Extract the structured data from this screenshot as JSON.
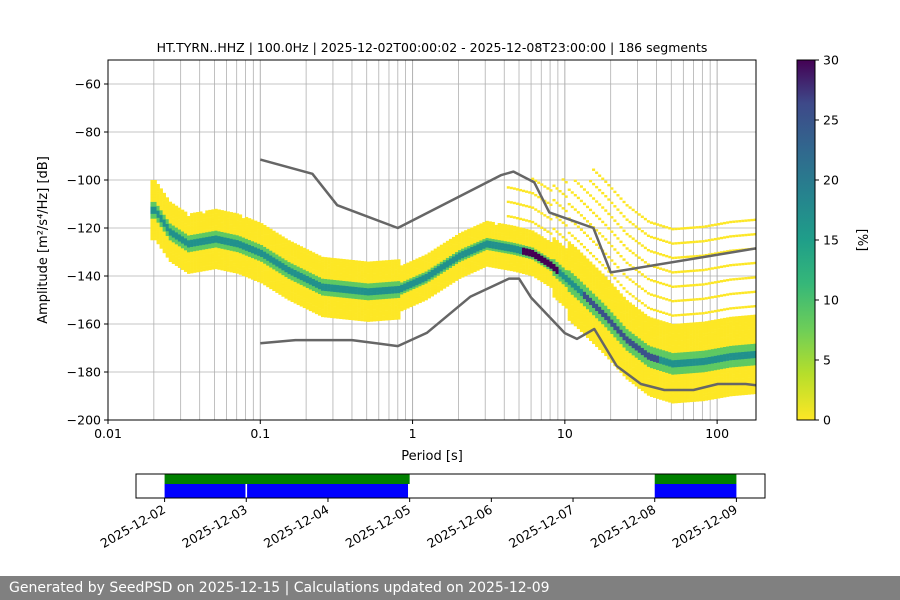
{
  "chart_data": {
    "type": "heatmap",
    "title": "HT.TYRN..HHZ | 100.0Hz | 2025-12-02T00:00:02 - 2025-12-08T23:00:00 | 186 segments",
    "xlabel": "Period [s]",
    "ylabel": "Amplitude [m²/s⁴/Hz] [dB]",
    "xscale": "log",
    "xlim": [
      0.01,
      180
    ],
    "ylim": [
      -200,
      -50
    ],
    "xticks": [
      {
        "value": 0.01,
        "label": "0.01"
      },
      {
        "value": 0.1,
        "label": "0.1"
      },
      {
        "value": 1,
        "label": "1"
      },
      {
        "value": 10,
        "label": "10"
      },
      {
        "value": 100,
        "label": "100"
      }
    ],
    "yticks": [
      {
        "value": -60,
        "label": "−60"
      },
      {
        "value": -80,
        "label": "−80"
      },
      {
        "value": -100,
        "label": "−100"
      },
      {
        "value": -120,
        "label": "−120"
      },
      {
        "value": -140,
        "label": "−140"
      },
      {
        "value": -160,
        "label": "−160"
      },
      {
        "value": -180,
        "label": "−180"
      },
      {
        "value": -200,
        "label": "−200"
      }
    ],
    "colorbar": {
      "label": "[%]",
      "range": [
        0,
        30
      ],
      "ticks": [
        "0",
        "5",
        "10",
        "15",
        "20",
        "25",
        "30"
      ],
      "colormap": [
        "#fde725",
        "#5ec962",
        "#21918c",
        "#3b528b",
        "#440154"
      ]
    },
    "grid_color": "#b0b0b0",
    "curve_color": "#666666",
    "series": [
      {
        "name": "NHNM",
        "x": [
          0.1,
          0.22,
          0.32,
          0.8,
          3.8,
          4.6,
          6.3,
          7.9,
          15.4,
          20,
          180
        ],
        "y": [
          -91.5,
          -97.4,
          -110.5,
          -120,
          -98,
          -96.5,
          -101,
          -113.5,
          -120,
          -138.5,
          -128.5
        ]
      },
      {
        "name": "NLNM",
        "x": [
          0.1,
          0.17,
          0.4,
          0.8,
          1.24,
          2.4,
          4.3,
          5,
          6,
          10,
          12,
          15.6,
          21.9,
          31.6,
          45,
          70,
          101,
          154,
          180
        ],
        "y": [
          -168,
          -166.7,
          -166.7,
          -169.2,
          -163.7,
          -148.6,
          -141.1,
          -141.1,
          -149,
          -163.8,
          -166.2,
          -162.1,
          -177.5,
          -185,
          -187.5,
          -187.5,
          -185,
          -185,
          -185.5
        ]
      },
      {
        "name": "PSD mode",
        "x": [
          0.02,
          0.025,
          0.033,
          0.05,
          0.07,
          0.1,
          0.15,
          0.25,
          0.5,
          0.8,
          1.2,
          2,
          3,
          4.5,
          6,
          8,
          12,
          18,
          25,
          35,
          50,
          80,
          120,
          180
        ],
        "y": [
          -113,
          -122,
          -127,
          -125,
          -127,
          -131,
          -138,
          -145,
          -147,
          -146,
          -141,
          -132,
          -127,
          -129,
          -131,
          -136,
          -146,
          -157,
          -167,
          -174,
          -177,
          -176,
          -174,
          -173
        ]
      }
    ],
    "availability": {
      "ticks": [
        "2025-12-02",
        "2025-12-03",
        "2025-12-04",
        "2025-12-05",
        "2025-12-06",
        "2025-12-07",
        "2025-12-08",
        "2025-12-09"
      ],
      "range_days": [
        -0.35,
        7.35
      ],
      "data_color": "#0000ff",
      "segments_color": "#008000",
      "data_spans_days": [
        [
          0,
          0.99
        ],
        [
          1.01,
          2.98
        ],
        [
          6,
          7
        ]
      ],
      "segment_spans_days": [
        [
          0,
          3
        ],
        [
          6,
          7
        ]
      ]
    }
  },
  "footer": {
    "text": "Generated by SeedPSD on 2025-12-15 | Calculations updated on 2025-12-09"
  }
}
